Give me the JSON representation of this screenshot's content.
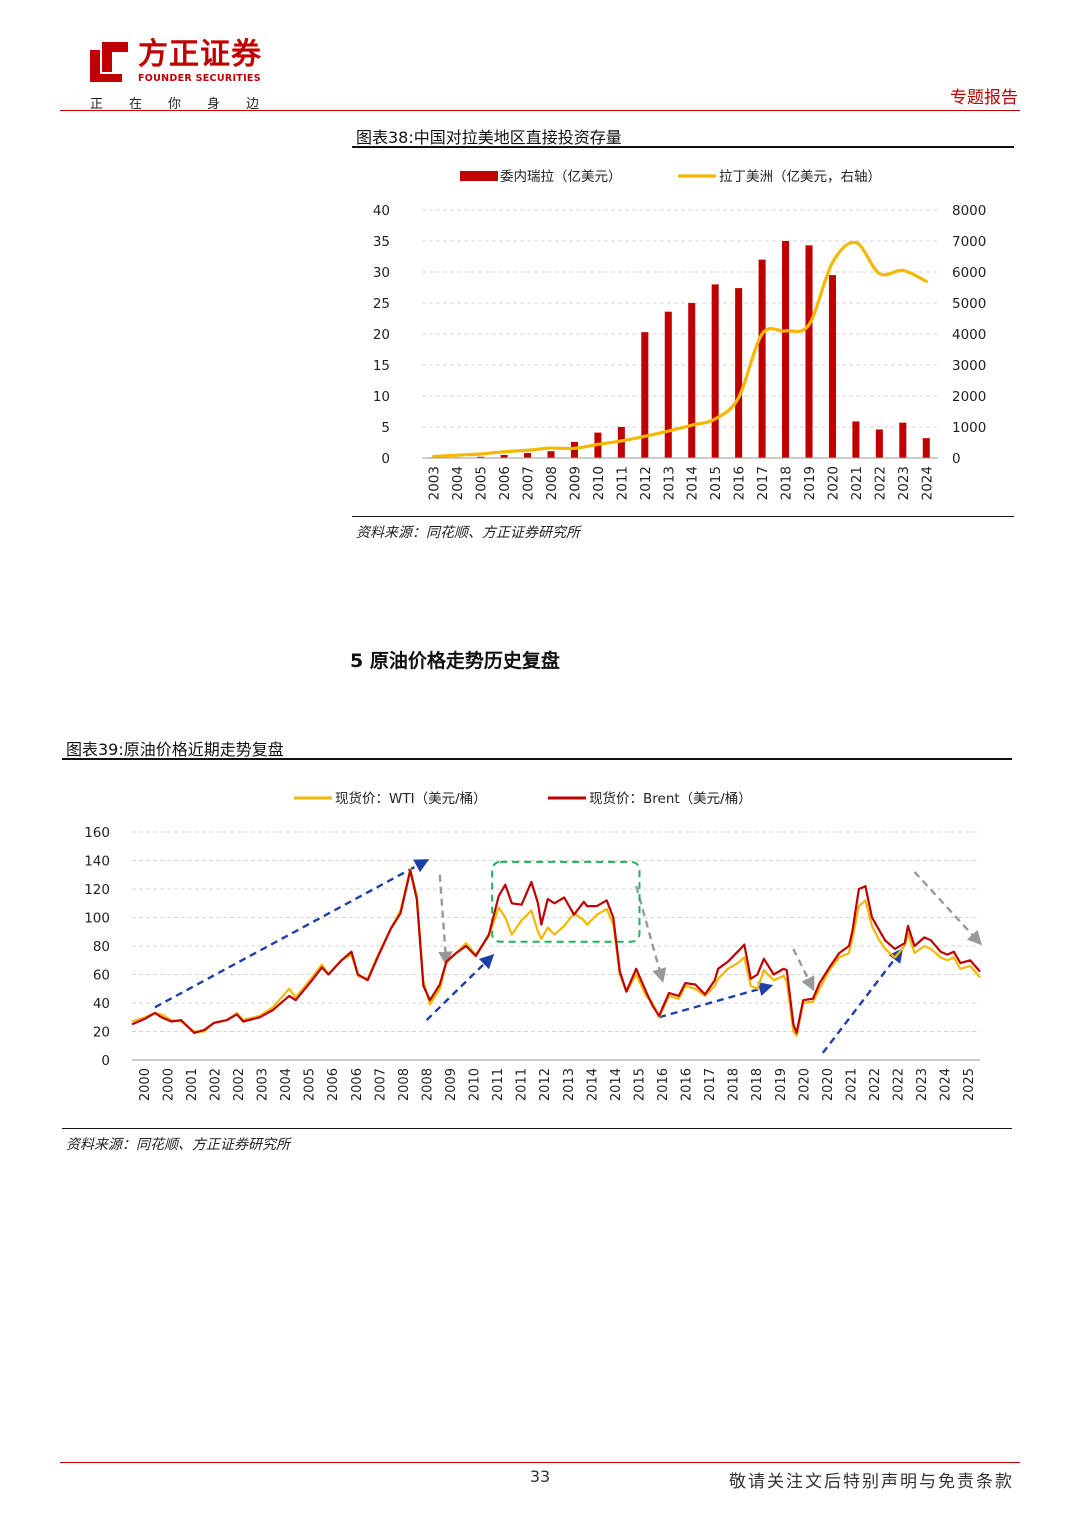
{
  "header": {
    "logo_cn": "方正证券",
    "logo_en": "FOUNDER SECURITIES",
    "slogan": "正在你身边",
    "report_type": "专题报告"
  },
  "chart38": {
    "caption": "图表38:中国对拉美地区直接投资存量",
    "source": "资料来源：同花顺、方正证券研究所"
  },
  "section": {
    "title": "5 原油价格走势历史复盘"
  },
  "chart39": {
    "caption": "图表39:原油价格近期走势复盘",
    "source": "资料来源：同花顺、方正证券研究所"
  },
  "footer": {
    "page_number": "33",
    "disclaimer": "敬请关注文后特别声明与免责条款"
  },
  "colors": {
    "brand_red": "#c00000",
    "bar_red": "#c00000",
    "line_gold": "#f5b800",
    "arrow_blue": "#1f3fa8",
    "arrow_gray": "#999999",
    "box_green": "#22b05a"
  },
  "chart_data": [
    {
      "type": "bar+line",
      "title": "图表38:中国对拉美地区直接投资存量",
      "categories": [
        "2003",
        "2004",
        "2005",
        "2006",
        "2007",
        "2008",
        "2009",
        "2010",
        "2011",
        "2012",
        "2013",
        "2014",
        "2015",
        "2016",
        "2017",
        "2018",
        "2019",
        "2020",
        "2021",
        "2022",
        "2023",
        "2024"
      ],
      "series": [
        {
          "name": "委内瑞拉（亿美元）",
          "type": "bar",
          "axis": "left",
          "values": [
            0.1,
            0.1,
            0.2,
            0.5,
            0.8,
            1.1,
            2.6,
            4.1,
            5.0,
            20.3,
            23.6,
            25.0,
            28.0,
            27.4,
            32.0,
            35.0,
            34.3,
            29.5,
            5.9,
            4.6,
            5.7,
            3.2
          ]
        },
        {
          "name": "拉丁美洲（亿美元，右轴）",
          "type": "line",
          "axis": "right",
          "values": [
            50,
            90,
            130,
            200,
            250,
            320,
            310,
            440,
            550,
            700,
            870,
            1060,
            1260,
            1950,
            4000,
            4100,
            4300,
            6300,
            6950,
            5950,
            6050,
            5700
          ]
        }
      ],
      "ylim_left": [
        0,
        40
      ],
      "yticks_left": [
        0,
        5,
        10,
        15,
        20,
        25,
        30,
        35,
        40
      ],
      "ylim_right": [
        0,
        8000
      ],
      "yticks_right": [
        0,
        1000,
        2000,
        3000,
        4000,
        5000,
        6000,
        7000,
        8000
      ],
      "legend": "top-center"
    },
    {
      "type": "line",
      "title": "图表39:原油价格近期走势复盘",
      "x_labels": [
        "2000",
        "2000",
        "2001",
        "2002",
        "2002",
        "2003",
        "2004",
        "2005",
        "2006",
        "2006",
        "2007",
        "2008",
        "2008",
        "2009",
        "2010",
        "2011",
        "2011",
        "2012",
        "2013",
        "2014",
        "2014",
        "2015",
        "2016",
        "2016",
        "2017",
        "2018",
        "2018",
        "2019",
        "2020",
        "2020",
        "2021",
        "2022",
        "2022",
        "2023",
        "2024",
        "2025"
      ],
      "x_range": [
        2000.0,
        2025.9
      ],
      "ylim": [
        0,
        160
      ],
      "yticks": [
        0,
        20,
        40,
        60,
        80,
        100,
        120,
        140,
        160
      ],
      "series": [
        {
          "name": "现货价：WTI（美元/桶）",
          "points": [
            [
              2000.0,
              27
            ],
            [
              2000.4,
              30
            ],
            [
              2000.7,
              33
            ],
            [
              2000.9,
              32
            ],
            [
              2001.2,
              28
            ],
            [
              2001.5,
              27
            ],
            [
              2001.9,
              20
            ],
            [
              2002.2,
              20
            ],
            [
              2002.5,
              26
            ],
            [
              2002.9,
              28
            ],
            [
              2003.2,
              33
            ],
            [
              2003.4,
              28
            ],
            [
              2003.9,
              31
            ],
            [
              2004.3,
              37
            ],
            [
              2004.8,
              50
            ],
            [
              2005.0,
              44
            ],
            [
              2005.5,
              58
            ],
            [
              2005.8,
              67
            ],
            [
              2006.0,
              60
            ],
            [
              2006.4,
              70
            ],
            [
              2006.7,
              74
            ],
            [
              2006.9,
              59
            ],
            [
              2007.2,
              57
            ],
            [
              2007.5,
              73
            ],
            [
              2007.9,
              92
            ],
            [
              2008.2,
              105
            ],
            [
              2008.5,
              134
            ],
            [
              2008.7,
              115
            ],
            [
              2008.9,
              55
            ],
            [
              2009.1,
              39
            ],
            [
              2009.4,
              50
            ],
            [
              2009.6,
              68
            ],
            [
              2009.9,
              75
            ],
            [
              2010.2,
              82
            ],
            [
              2010.5,
              74
            ],
            [
              2010.9,
              87
            ],
            [
              2011.2,
              107
            ],
            [
              2011.4,
              100
            ],
            [
              2011.6,
              88
            ],
            [
              2011.9,
              98
            ],
            [
              2012.2,
              105
            ],
            [
              2012.4,
              90
            ],
            [
              2012.5,
              85
            ],
            [
              2012.7,
              93
            ],
            [
              2012.9,
              88
            ],
            [
              2013.2,
              94
            ],
            [
              2013.5,
              103
            ],
            [
              2013.8,
              98
            ],
            [
              2013.9,
              95
            ],
            [
              2014.2,
              102
            ],
            [
              2014.5,
              106
            ],
            [
              2014.7,
              95
            ],
            [
              2014.9,
              60
            ],
            [
              2015.1,
              48
            ],
            [
              2015.4,
              60
            ],
            [
              2015.7,
              45
            ],
            [
              2015.9,
              40
            ],
            [
              2016.1,
              30
            ],
            [
              2016.4,
              45
            ],
            [
              2016.7,
              43
            ],
            [
              2016.9,
              52
            ],
            [
              2017.2,
              50
            ],
            [
              2017.5,
              45
            ],
            [
              2017.8,
              52
            ],
            [
              2017.9,
              57
            ],
            [
              2018.2,
              64
            ],
            [
              2018.5,
              68
            ],
            [
              2018.7,
              72
            ],
            [
              2018.9,
              52
            ],
            [
              2019.1,
              50
            ],
            [
              2019.3,
              63
            ],
            [
              2019.6,
              56
            ],
            [
              2019.9,
              59
            ],
            [
              2020.0,
              55
            ],
            [
              2020.2,
              20
            ],
            [
              2020.3,
              17
            ],
            [
              2020.5,
              40
            ],
            [
              2020.8,
              41
            ],
            [
              2021.0,
              50
            ],
            [
              2021.3,
              63
            ],
            [
              2021.6,
              72
            ],
            [
              2021.9,
              75
            ],
            [
              2022.0,
              85
            ],
            [
              2022.2,
              108
            ],
            [
              2022.4,
              112
            ],
            [
              2022.6,
              94
            ],
            [
              2022.8,
              85
            ],
            [
              2023.0,
              78
            ],
            [
              2023.3,
              72
            ],
            [
              2023.6,
              80
            ],
            [
              2023.7,
              89
            ],
            [
              2023.9,
              75
            ],
            [
              2024.2,
              80
            ],
            [
              2024.4,
              78
            ],
            [
              2024.7,
              72
            ],
            [
              2024.9,
              70
            ],
            [
              2025.1,
              72
            ],
            [
              2025.3,
              64
            ],
            [
              2025.6,
              66
            ],
            [
              2025.9,
              58
            ]
          ]
        },
        {
          "name": "现货价：Brent（美元/桶）",
          "points": [
            [
              2000.0,
              25
            ],
            [
              2000.4,
              29
            ],
            [
              2000.7,
              33
            ],
            [
              2000.9,
              30
            ],
            [
              2001.2,
              27
            ],
            [
              2001.5,
              28
            ],
            [
              2001.9,
              19
            ],
            [
              2002.2,
              21
            ],
            [
              2002.5,
              26
            ],
            [
              2002.9,
              28
            ],
            [
              2003.2,
              32
            ],
            [
              2003.4,
              27
            ],
            [
              2003.9,
              30
            ],
            [
              2004.3,
              35
            ],
            [
              2004.8,
              45
            ],
            [
              2005.0,
              42
            ],
            [
              2005.5,
              56
            ],
            [
              2005.8,
              65
            ],
            [
              2006.0,
              60
            ],
            [
              2006.4,
              70
            ],
            [
              2006.7,
              76
            ],
            [
              2006.9,
              60
            ],
            [
              2007.2,
              56
            ],
            [
              2007.5,
              72
            ],
            [
              2007.9,
              92
            ],
            [
              2008.2,
              103
            ],
            [
              2008.5,
              133
            ],
            [
              2008.7,
              113
            ],
            [
              2008.9,
              52
            ],
            [
              2009.1,
              42
            ],
            [
              2009.4,
              53
            ],
            [
              2009.6,
              69
            ],
            [
              2009.9,
              75
            ],
            [
              2010.2,
              80
            ],
            [
              2010.5,
              73
            ],
            [
              2010.9,
              88
            ],
            [
              2011.2,
              115
            ],
            [
              2011.4,
              123
            ],
            [
              2011.6,
              110
            ],
            [
              2011.9,
              109
            ],
            [
              2012.2,
              125
            ],
            [
              2012.4,
              110
            ],
            [
              2012.5,
              95
            ],
            [
              2012.7,
              113
            ],
            [
              2012.9,
              110
            ],
            [
              2013.2,
              114
            ],
            [
              2013.5,
              102
            ],
            [
              2013.8,
              111
            ],
            [
              2013.9,
              108
            ],
            [
              2014.2,
              108
            ],
            [
              2014.5,
              112
            ],
            [
              2014.7,
              100
            ],
            [
              2014.9,
              62
            ],
            [
              2015.1,
              48
            ],
            [
              2015.4,
              64
            ],
            [
              2015.7,
              48
            ],
            [
              2015.9,
              38
            ],
            [
              2016.1,
              31
            ],
            [
              2016.4,
              47
            ],
            [
              2016.7,
              45
            ],
            [
              2016.9,
              54
            ],
            [
              2017.2,
              53
            ],
            [
              2017.5,
              46
            ],
            [
              2017.8,
              56
            ],
            [
              2017.9,
              64
            ],
            [
              2018.2,
              69
            ],
            [
              2018.5,
              76
            ],
            [
              2018.7,
              81
            ],
            [
              2018.9,
              57
            ],
            [
              2019.1,
              60
            ],
            [
              2019.3,
              71
            ],
            [
              2019.6,
              60
            ],
            [
              2019.9,
              64
            ],
            [
              2020.0,
              63
            ],
            [
              2020.2,
              25
            ],
            [
              2020.3,
              19
            ],
            [
              2020.5,
              42
            ],
            [
              2020.8,
              43
            ],
            [
              2021.0,
              54
            ],
            [
              2021.3,
              65
            ],
            [
              2021.6,
              75
            ],
            [
              2021.9,
              80
            ],
            [
              2022.0,
              90
            ],
            [
              2022.2,
              120
            ],
            [
              2022.4,
              122
            ],
            [
              2022.6,
              100
            ],
            [
              2022.8,
              92
            ],
            [
              2023.0,
              84
            ],
            [
              2023.3,
              78
            ],
            [
              2023.6,
              82
            ],
            [
              2023.7,
              94
            ],
            [
              2023.9,
              80
            ],
            [
              2024.2,
              86
            ],
            [
              2024.4,
              84
            ],
            [
              2024.7,
              76
            ],
            [
              2024.9,
              74
            ],
            [
              2025.1,
              76
            ],
            [
              2025.3,
              68
            ],
            [
              2025.6,
              70
            ],
            [
              2025.9,
              62
            ]
          ]
        }
      ],
      "annotations": [
        "dashed blue arrows mark uptrends",
        "dashed gray arrows mark downtrends",
        "green dashed box marks 2011-2014 high-price plateau"
      ],
      "legend": "top-center"
    }
  ]
}
